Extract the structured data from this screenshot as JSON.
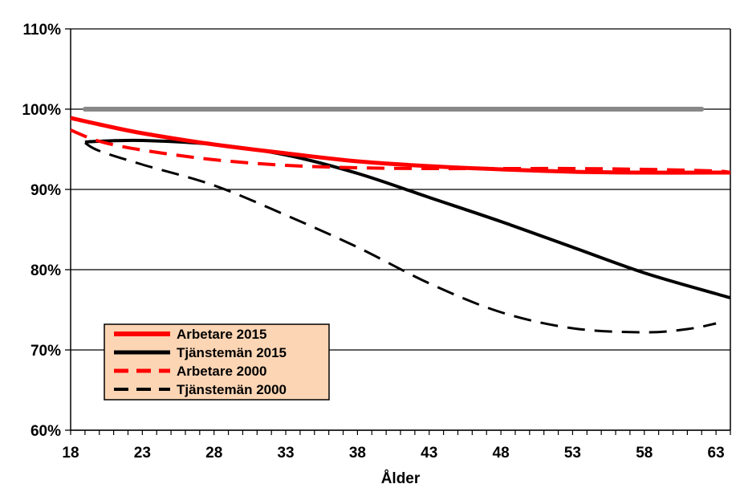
{
  "chart_data": {
    "type": "line",
    "xlabel": "Ålder",
    "ylabel": "",
    "xlim": [
      18,
      64
    ],
    "ylim": [
      0.6,
      1.1
    ],
    "x_ticks": [
      18,
      23,
      28,
      33,
      38,
      43,
      48,
      53,
      58,
      63
    ],
    "y_ticks": [
      0.6,
      0.7,
      0.8,
      0.9,
      1.0,
      1.1
    ],
    "y_tick_labels": [
      "60%",
      "70%",
      "80%",
      "90%",
      "100%",
      "110%"
    ],
    "grid": "horizontal",
    "legend_position": "lower-left",
    "reference_line": {
      "x": [
        19,
        62
      ],
      "y": [
        1.0,
        1.0
      ],
      "color": "#888888"
    },
    "series": [
      {
        "name": "Arbetare 2015",
        "color": "#ff0000",
        "dash": "solid",
        "width": 5,
        "x": [
          18,
          20,
          23,
          28,
          33,
          38,
          43,
          48,
          53,
          58,
          63,
          64
        ],
        "y": [
          0.989,
          0.981,
          0.97,
          0.956,
          0.945,
          0.935,
          0.929,
          0.925,
          0.922,
          0.921,
          0.921,
          0.921
        ]
      },
      {
        "name": "Tjänstemän 2015",
        "color": "#000000",
        "dash": "solid",
        "width": 4,
        "x": [
          19,
          20,
          23,
          28,
          33,
          38,
          43,
          48,
          53,
          58,
          63,
          64
        ],
        "y": [
          0.959,
          0.96,
          0.961,
          0.956,
          0.943,
          0.92,
          0.89,
          0.86,
          0.828,
          0.796,
          0.77,
          0.765
        ]
      },
      {
        "name": "Arbetare 2000",
        "color": "#ff0000",
        "dash": "dashed",
        "width": 4,
        "x": [
          18,
          20,
          23,
          28,
          33,
          38,
          43,
          48,
          53,
          58,
          63,
          64
        ],
        "y": [
          0.974,
          0.96,
          0.949,
          0.937,
          0.93,
          0.927,
          0.926,
          0.926,
          0.926,
          0.925,
          0.923,
          0.921
        ]
      },
      {
        "name": "Tjänstemän 2000",
        "color": "#000000",
        "dash": "dashed",
        "width": 3,
        "x": [
          19,
          20,
          23,
          28,
          33,
          38,
          43,
          48,
          53,
          58,
          61,
          63
        ],
        "y": [
          0.958,
          0.948,
          0.931,
          0.905,
          0.868,
          0.828,
          0.783,
          0.747,
          0.727,
          0.722,
          0.726,
          0.733
        ]
      }
    ]
  }
}
